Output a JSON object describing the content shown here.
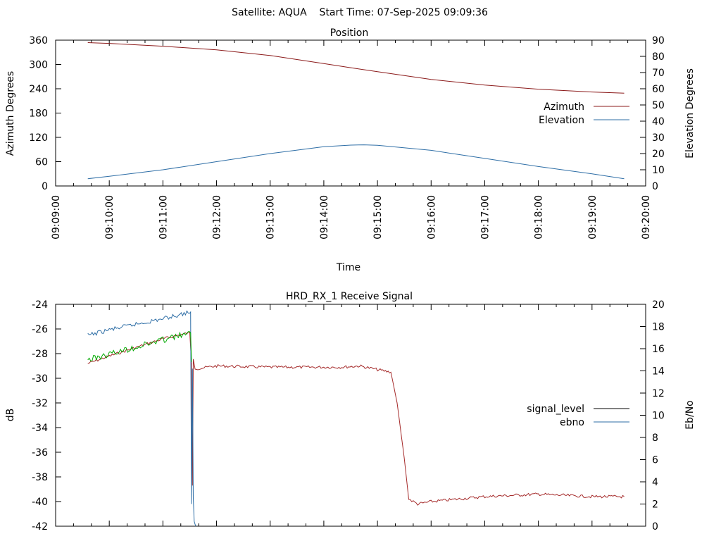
{
  "header": {
    "title": "Satellite: AQUA    Start Time: 07-Sep-2025 09:09:36"
  },
  "chart_data": [
    {
      "type": "line",
      "title": "Position",
      "xlabel": "Time",
      "ylabel": "Azimuth Degrees",
      "y2label": "Elevation Degrees",
      "xlim": [
        "09:09:00",
        "09:20:00"
      ],
      "ylim": [
        0,
        360
      ],
      "y2lim": [
        0,
        90
      ],
      "x_ticks": [
        "09:09:00",
        "09:10:00",
        "09:11:00",
        "09:12:00",
        "09:13:00",
        "09:14:00",
        "09:15:00",
        "09:16:00",
        "09:17:00",
        "09:18:00",
        "09:19:00",
        "09:20:00"
      ],
      "y_ticks": [
        "0",
        "60",
        "120",
        "180",
        "240",
        "300",
        "360"
      ],
      "y2_ticks": [
        "0",
        "10",
        "20",
        "30",
        "40",
        "50",
        "60",
        "70",
        "80",
        "90"
      ],
      "legend_position": "right",
      "grid": false,
      "series": [
        {
          "name": "Azimuth",
          "axis": "y",
          "color": "#8b1a1a",
          "x": [
            "09:09:36",
            "09:10:00",
            "09:11:00",
            "09:12:00",
            "09:13:00",
            "09:14:00",
            "09:14:30",
            "09:15:00",
            "09:16:00",
            "09:17:00",
            "09:18:00",
            "09:19:00",
            "09:19:36"
          ],
          "y": [
            354,
            352,
            345,
            336,
            322,
            302,
            292,
            282,
            263,
            249,
            239,
            232,
            229
          ]
        },
        {
          "name": "Elevation",
          "axis": "y2",
          "color": "#2e6ea6",
          "x": [
            "09:09:36",
            "09:10:00",
            "09:11:00",
            "09:12:00",
            "09:13:00",
            "09:14:00",
            "09:14:30",
            "09:14:45",
            "09:15:00",
            "09:16:00",
            "09:17:00",
            "09:18:00",
            "09:19:00",
            "09:19:36"
          ],
          "y": [
            4.5,
            6,
            10,
            15,
            20,
            24.2,
            25.2,
            25.4,
            25.1,
            22,
            17,
            12,
            7.5,
            4.5
          ]
        }
      ]
    },
    {
      "type": "line",
      "title": "HRD_RX_1 Receive Signal",
      "xlabel": "",
      "ylabel": "dB",
      "y2label": "Eb/No",
      "xlim": [
        "09:09:00",
        "09:20:00"
      ],
      "ylim": [
        -42,
        -24
      ],
      "y2lim": [
        0,
        20
      ],
      "y_ticks": [
        "-42",
        "-40",
        "-38",
        "-36",
        "-34",
        "-32",
        "-30",
        "-28",
        "-26",
        "-24"
      ],
      "y2_ticks": [
        "0",
        "2",
        "4",
        "6",
        "8",
        "10",
        "12",
        "14",
        "16",
        "18",
        "20"
      ],
      "legend_position": "right",
      "grid": false,
      "series": [
        {
          "name": "signal_level",
          "axis": "y",
          "color": "#a52a2a",
          "x": [
            "09:09:36",
            "09:10:00",
            "09:11:00",
            "09:11:30",
            "09:11:32",
            "09:11:33",
            "09:11:34",
            "09:11:36",
            "09:11:40",
            "09:12:00",
            "09:13:00",
            "09:14:00",
            "09:14:20",
            "09:14:40",
            "09:15:00",
            "09:15:15",
            "09:15:22",
            "09:15:30",
            "09:15:35",
            "09:15:45",
            "09:16:00",
            "09:17:00",
            "09:18:00",
            "09:19:00",
            "09:19:36"
          ],
          "y": [
            -28.8,
            -28.2,
            -26.8,
            -26.3,
            -28.8,
            -38.7,
            -28.5,
            -29.2,
            -29.2,
            -29.0,
            -29.1,
            -29.1,
            -29.1,
            -29.0,
            -29.3,
            -29.5,
            -32.0,
            -36.5,
            -39.8,
            -40.2,
            -40.0,
            -39.6,
            -39.4,
            -39.6,
            -39.6
          ]
        },
        {
          "name": "ebno",
          "axis": "y2",
          "color": "#2e6ea6",
          "x": [
            "09:09:36",
            "09:10:00",
            "09:11:00",
            "09:11:30",
            "09:11:31",
            "09:11:32",
            "09:11:33",
            "09:11:34",
            "09:11:35",
            "09:11:36",
            "09:11:37"
          ],
          "y": [
            17.2,
            17.7,
            18.7,
            19.3,
            19.3,
            2.0,
            14.2,
            2.5,
            0.4,
            0,
            0
          ]
        },
        {
          "name": "",
          "axis": "y2",
          "color": "#00aa00",
          "legend": false,
          "x": [
            "09:09:36",
            "09:10:00",
            "09:11:00",
            "09:11:30",
            "09:11:31",
            "09:11:32"
          ],
          "y": [
            15.0,
            15.5,
            16.8,
            17.4,
            17.4,
            14.8
          ]
        }
      ]
    }
  ]
}
